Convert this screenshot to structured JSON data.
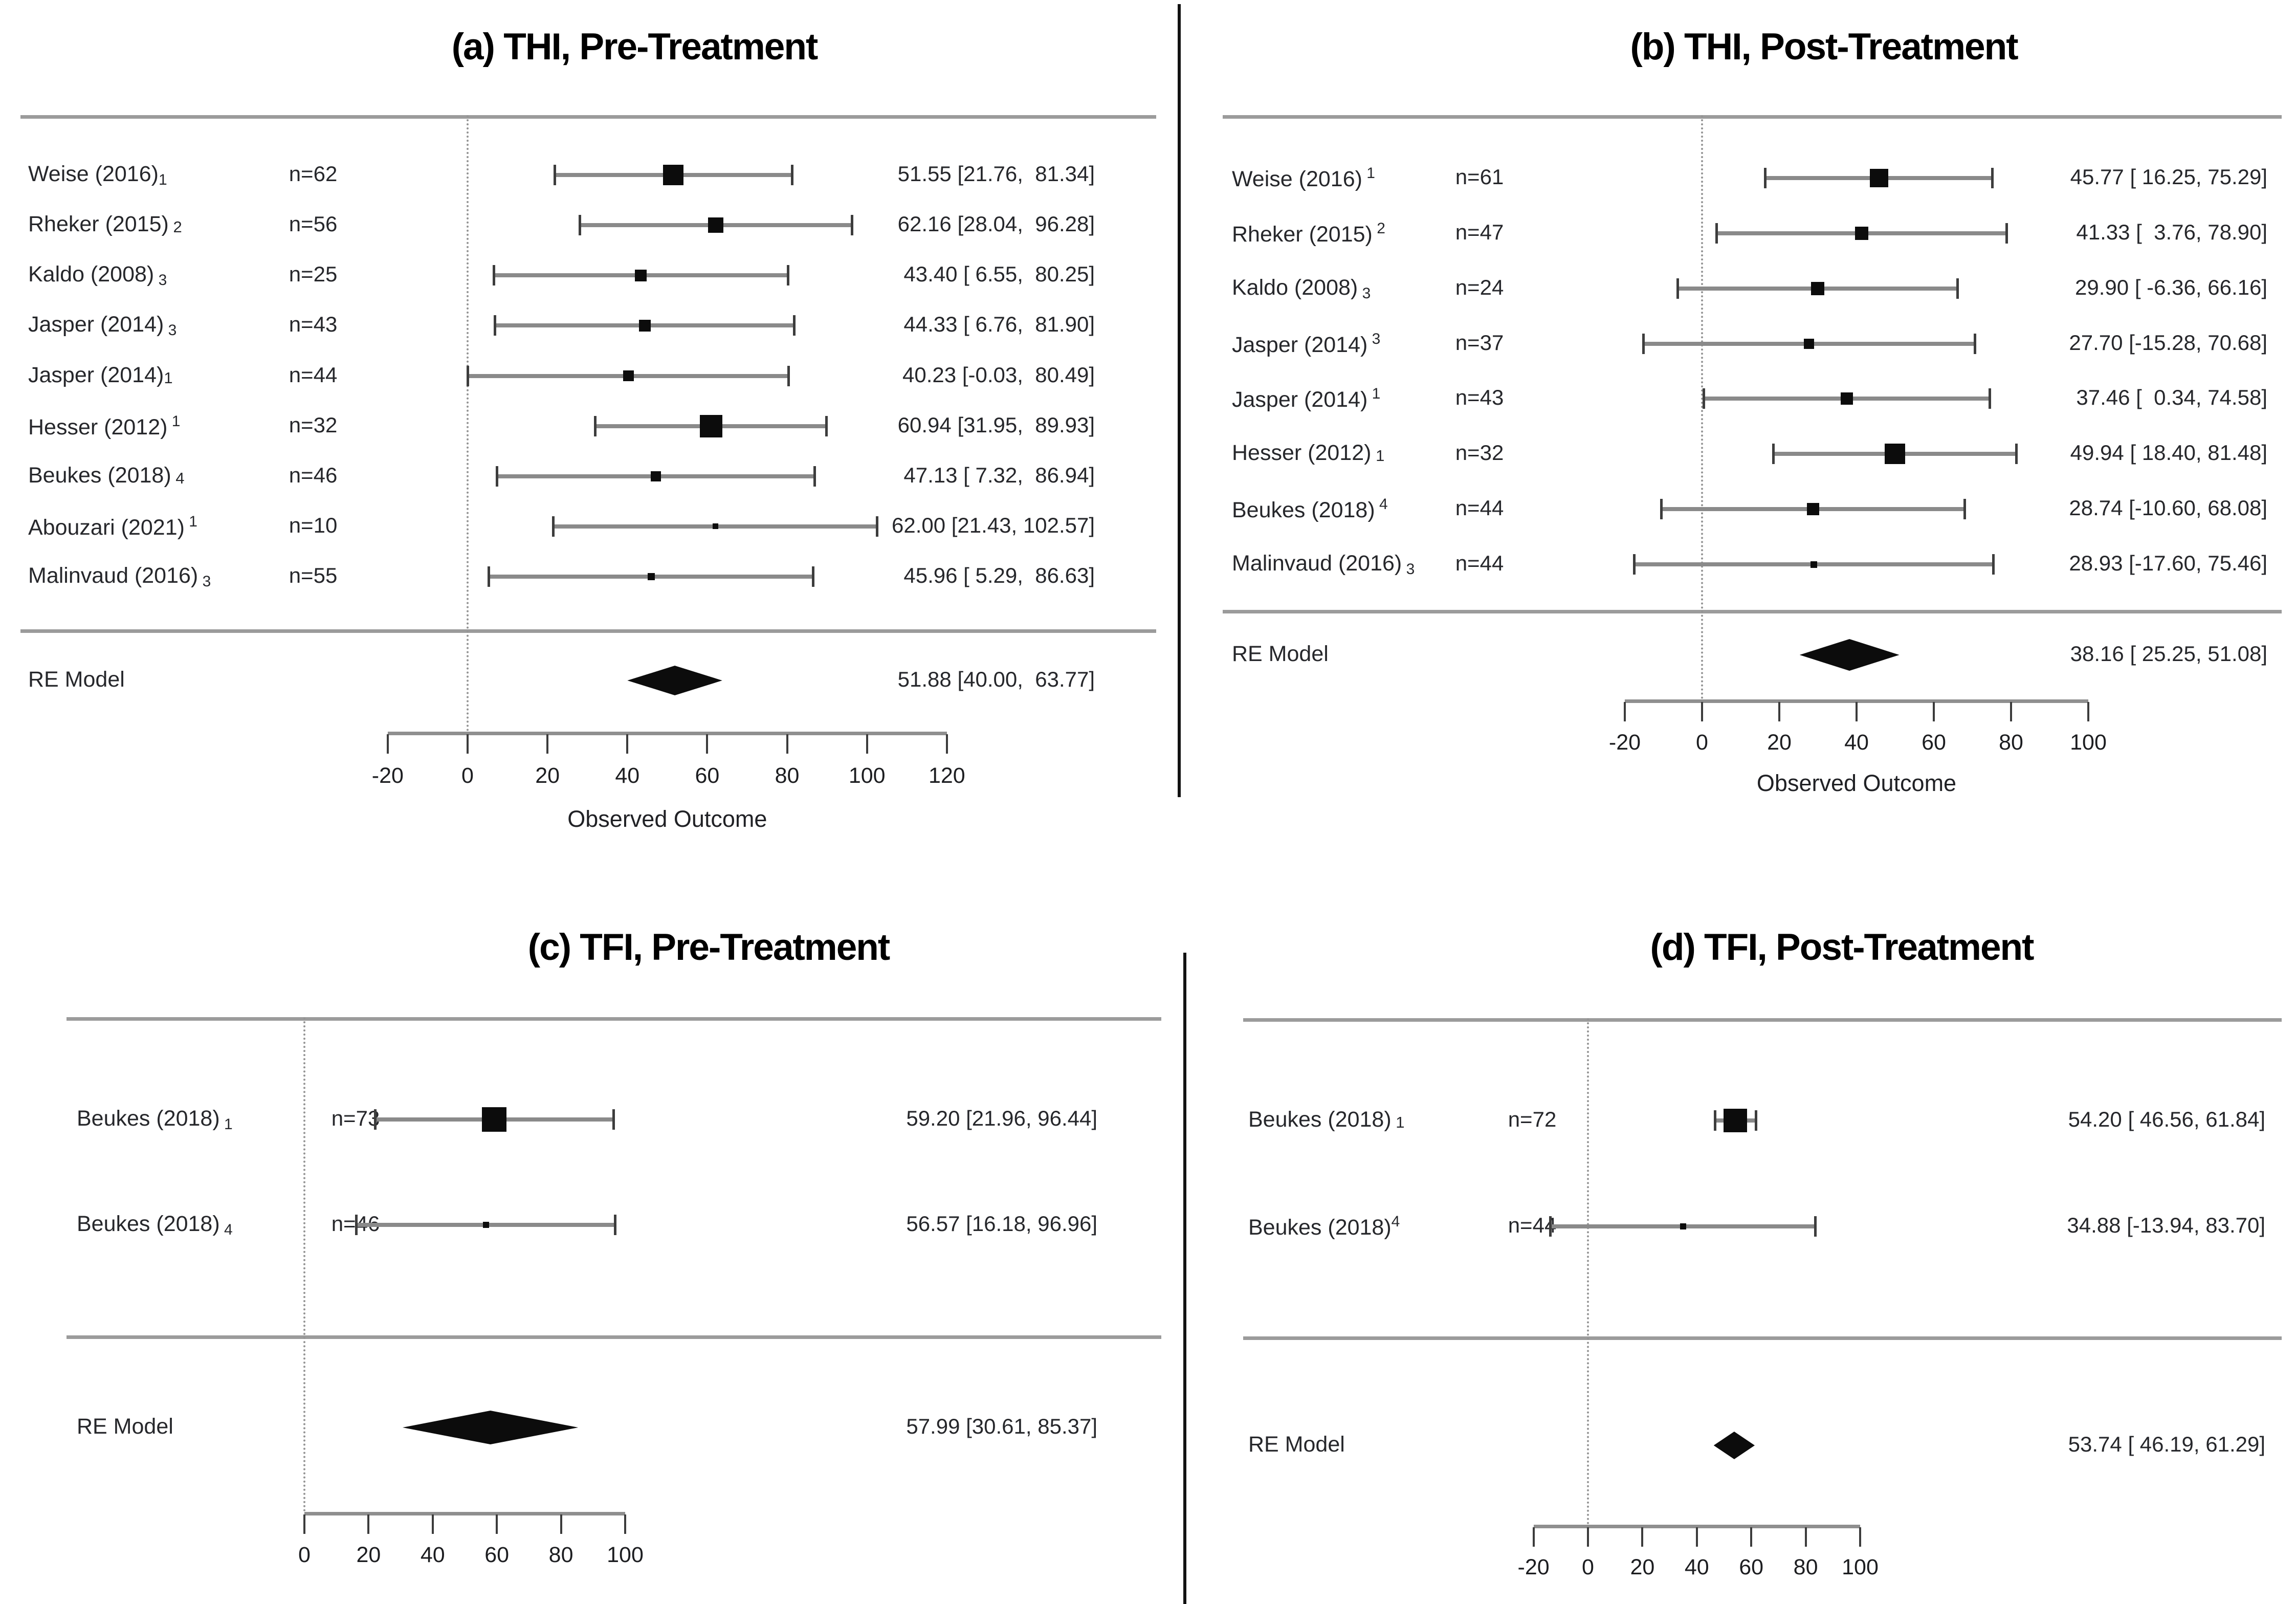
{
  "figure": {
    "background": "#ffffff",
    "text_color": "#26272b",
    "marker_color": "#0c0c0c",
    "rule_color": "#9b9b9b",
    "whisker_color": "#8a8a8a",
    "ref_line_color": "#949494"
  },
  "chart_data": [
    {
      "id": "a",
      "type": "forest",
      "title": "(a) THI, Pre-Treatment",
      "xlabel": "Observed Outcome",
      "axis": {
        "min": -20,
        "max": 120,
        "ticks": [
          -20,
          0,
          20,
          40,
          60,
          80,
          100,
          120
        ],
        "ref_line": 0,
        "grid": false
      },
      "re": {
        "label": "RE Model",
        "est": 51.88,
        "lo": 40.0,
        "hi": 63.77,
        "ci_text": "51.88 [40.00,  63.77]"
      },
      "studies": [
        {
          "label": "Weise (2016)",
          "affix": "1",
          "affix_style": "sub",
          "n": "n=62",
          "est": 51.55,
          "lo": 21.76,
          "hi": 81.34,
          "ci_text": "51.55 [21.76,  81.34]",
          "marker": 40
        },
        {
          "label": "Rheker (2015)",
          "affix": " 2",
          "affix_style": "base",
          "n": "n=56",
          "est": 62.16,
          "lo": 28.04,
          "hi": 96.28,
          "ci_text": "62.16 [28.04,  96.28]",
          "marker": 30
        },
        {
          "label": "Kaldo (2008)",
          "affix": " 3",
          "affix_style": "sub",
          "n": "n=25",
          "est": 43.4,
          "lo": 6.55,
          "hi": 80.25,
          "ci_text": "43.40 [ 6.55,  80.25]",
          "marker": 23
        },
        {
          "label": "Jasper (2014)",
          "affix": " 3",
          "affix_style": "sub",
          "n": "n=43",
          "est": 44.33,
          "lo": 6.76,
          "hi": 81.9,
          "ci_text": "44.33 [ 6.76,  81.90]",
          "marker": 23
        },
        {
          "label": "Jasper (2014)",
          "affix": "1",
          "affix_style": "base",
          "n": "n=44",
          "est": 40.23,
          "lo": -0.03,
          "hi": 80.49,
          "ci_text": "40.23 [-0.03,  80.49]",
          "marker": 21
        },
        {
          "label": "Hesser (2012)",
          "affix": " 1",
          "affix_style": "sup",
          "n": "n=32",
          "est": 60.94,
          "lo": 31.95,
          "hi": 89.93,
          "ci_text": "60.94 [31.95,  89.93]",
          "marker": 44
        },
        {
          "label": "Beukes (2018)",
          "affix": " 4",
          "affix_style": "base",
          "n": "n=46",
          "est": 47.13,
          "lo": 7.32,
          "hi": 86.94,
          "ci_text": "47.13 [ 7.32,  86.94]",
          "marker": 20
        },
        {
          "label": "Abouzari (2021)",
          "affix": " 1",
          "affix_style": "sup",
          "n": "n=10",
          "est": 62.0,
          "lo": 21.43,
          "hi": 102.57,
          "ci_text": "62.00 [21.43, 102.57]",
          "marker": 11
        },
        {
          "label": "Malinvaud (2016)",
          "affix": " 3",
          "affix_style": "sub",
          "n": "n=55",
          "est": 45.96,
          "lo": 5.29,
          "hi": 86.63,
          "ci_text": "45.96 [ 5.29,  86.63]",
          "marker": 14
        }
      ]
    },
    {
      "id": "b",
      "type": "forest",
      "title": "(b) THI, Post-Treatment",
      "xlabel": "Observed Outcome",
      "axis": {
        "min": -20,
        "max": 100,
        "ticks": [
          -20,
          0,
          20,
          40,
          60,
          80,
          100
        ],
        "ref_line": 0,
        "grid": false
      },
      "re": {
        "label": "RE Model",
        "est": 38.16,
        "lo": 25.25,
        "hi": 51.08,
        "ci_text": "38.16 [ 25.25, 51.08]"
      },
      "studies": [
        {
          "label": "Weise (2016)",
          "affix": " 1",
          "affix_style": "sup",
          "n": "n=61",
          "est": 45.77,
          "lo": 16.25,
          "hi": 75.29,
          "ci_text": "45.77 [ 16.25, 75.29]",
          "marker": 36
        },
        {
          "label": "Rheker (2015)",
          "affix": " 2",
          "affix_style": "sup",
          "n": "n=47",
          "est": 41.33,
          "lo": 3.76,
          "hi": 78.9,
          "ci_text": "41.33 [  3.76, 78.90]",
          "marker": 26
        },
        {
          "label": "Kaldo (2008)",
          "affix": " 3",
          "affix_style": "sub",
          "n": "n=24",
          "est": 29.9,
          "lo": -6.36,
          "hi": 66.16,
          "ci_text": "29.90 [ -6.36, 66.16]",
          "marker": 26
        },
        {
          "label": "Jasper (2014)",
          "affix": " 3",
          "affix_style": "sup",
          "n": "n=37",
          "est": 27.7,
          "lo": -15.28,
          "hi": 70.68,
          "ci_text": "27.70 [-15.28, 70.68]",
          "marker": 20
        },
        {
          "label": "Jasper (2014)",
          "affix": " 1",
          "affix_style": "sup",
          "n": "n=43",
          "est": 37.46,
          "lo": 0.34,
          "hi": 74.58,
          "ci_text": "37.46 [  0.34, 74.58]",
          "marker": 24
        },
        {
          "label": "Hesser (2012)",
          "affix": " 1",
          "affix_style": "base",
          "n": "n=32",
          "est": 49.94,
          "lo": 18.4,
          "hi": 81.48,
          "ci_text": "49.94 [ 18.40, 81.48]",
          "marker": 40
        },
        {
          "label": "Beukes (2018)",
          "affix": " 4",
          "affix_style": "sup",
          "n": "n=44",
          "est": 28.74,
          "lo": -10.6,
          "hi": 68.08,
          "ci_text": "28.74 [-10.60, 68.08]",
          "marker": 24
        },
        {
          "label": "Malinvaud (2016)",
          "affix": " 3",
          "affix_style": "sub",
          "n": "n=44",
          "est": 28.93,
          "lo": -17.6,
          "hi": 75.46,
          "ci_text": "28.93 [-17.60, 75.46]",
          "marker": 13
        }
      ]
    },
    {
      "id": "c",
      "type": "forest",
      "title": "(c) TFI, Pre-Treatment",
      "xlabel": null,
      "axis": {
        "min": 0,
        "max": 100,
        "ticks": [
          0,
          20,
          40,
          60,
          80,
          100
        ],
        "ref_line": 0,
        "grid": false
      },
      "re": {
        "label": "RE Model",
        "est": 57.99,
        "lo": 30.61,
        "hi": 85.37,
        "ci_text": "57.99 [30.61, 85.37]"
      },
      "studies": [
        {
          "label": "Beukes (2018)",
          "affix": " 1",
          "affix_style": "sub",
          "n": "n=73",
          "est": 59.2,
          "lo": 21.96,
          "hi": 96.44,
          "ci_text": "59.20 [21.96, 96.44]",
          "marker": 48
        },
        {
          "label": "Beukes (2018)",
          "affix": " 4",
          "affix_style": "sub",
          "n": "n=46",
          "est": 56.57,
          "lo": 16.18,
          "hi": 96.96,
          "ci_text": "56.57 [16.18, 96.96]",
          "marker": 12
        }
      ]
    },
    {
      "id": "d",
      "type": "forest",
      "title": "(d) TFI, Post-Treatment",
      "xlabel": null,
      "axis": {
        "min": -20,
        "max": 100,
        "ticks": [
          -20,
          0,
          20,
          40,
          60,
          80,
          100
        ],
        "ref_line": 0,
        "grid": false
      },
      "re": {
        "label": "RE Model",
        "est": 53.74,
        "lo": 46.19,
        "hi": 61.29,
        "ci_text": "53.74 [ 46.19, 61.29]"
      },
      "studies": [
        {
          "label": "Beukes (2018)",
          "affix": " 1",
          "affix_style": "base",
          "n": "n=72",
          "est": 54.2,
          "lo": 46.56,
          "hi": 61.84,
          "ci_text": "54.20 [ 46.56, 61.84]",
          "marker": 46
        },
        {
          "label": "Beukes (2018)",
          "affix": "4",
          "affix_style": "sup",
          "n": "n=44",
          "est": 34.88,
          "lo": -13.94,
          "hi": 83.7,
          "ci_text": "34.88 [-13.94, 83.70]",
          "marker": 12
        }
      ]
    }
  ]
}
